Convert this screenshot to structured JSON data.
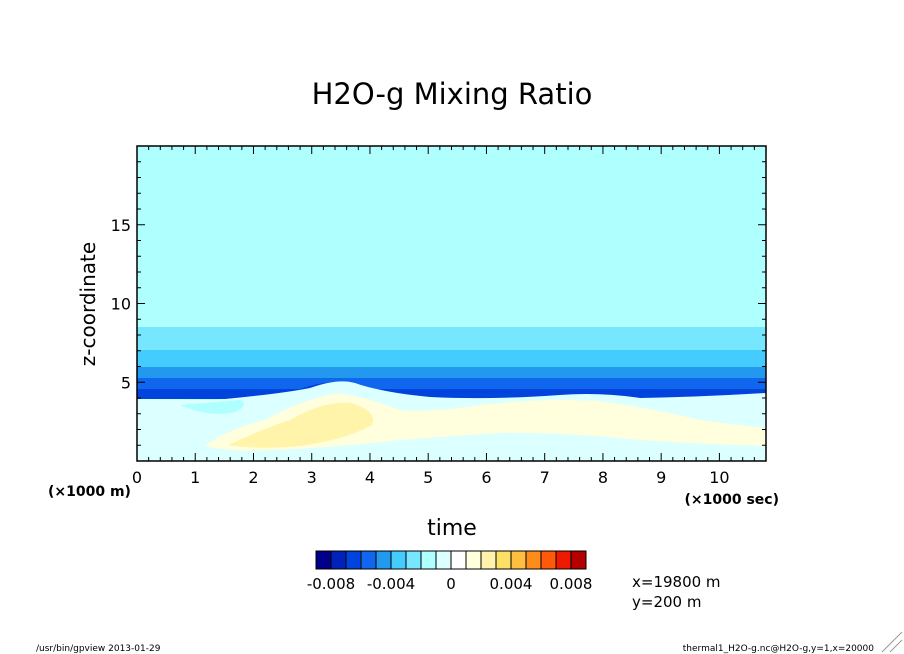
{
  "chart_data": {
    "type": "heatmap",
    "title": "H2O-g Mixing Ratio",
    "xlabel": "time",
    "ylabel": "z-coordinate",
    "x_unit_note": "(×1000 sec)",
    "y_unit_note": "(×1000 m)",
    "xlim": [
      0,
      10.8
    ],
    "ylim": [
      0,
      20
    ],
    "x_ticks": [
      "0",
      "1",
      "2",
      "3",
      "4",
      "5",
      "6",
      "7",
      "8",
      "9",
      "10"
    ],
    "y_ticks": [
      "5",
      "10",
      "15"
    ],
    "colorbar": {
      "colors": [
        "#00008b",
        "#0022bb",
        "#0044dd",
        "#1166ee",
        "#2299ee",
        "#44ccff",
        "#77e6ff",
        "#b0ffff",
        "#dcffff",
        "#ffffff",
        "#ffffdd",
        "#fff4aa",
        "#ffe066",
        "#ffc040",
        "#ff8c1a",
        "#ff5a0a",
        "#ee1a00",
        "#b30000"
      ],
      "tick_labels": [
        "-0.008",
        "-0.004",
        "0",
        "0.004",
        "0.008"
      ],
      "tick_values": [
        -0.008,
        -0.004,
        0,
        0.004,
        0.008
      ],
      "range": [
        -0.009,
        0.009
      ]
    },
    "bands": [
      {
        "value_range": [
          -0.001,
          0.0
        ],
        "z_range": [
          8.5,
          20
        ],
        "color": "#b0ffff"
      },
      {
        "value_range": [
          -0.002,
          -0.001
        ],
        "z_range": [
          7.1,
          8.5
        ],
        "color": "#77e6ff"
      },
      {
        "value_range": [
          -0.003,
          -0.002
        ],
        "z_range": [
          6.0,
          7.1
        ],
        "color": "#44ccff"
      },
      {
        "value_range": [
          -0.004,
          -0.003
        ],
        "z_range": [
          5.4,
          6.0
        ],
        "color": "#2299ee"
      },
      {
        "value_range": [
          -0.005,
          -0.004
        ],
        "z_range": [
          4.5,
          5.4
        ],
        "color": "#1166ee"
      },
      {
        "value_range": [
          -0.006,
          -0.005
        ],
        "z_range": [
          3.9,
          4.5
        ],
        "color": "#0044dd"
      }
    ],
    "info": [
      "x=19800 m",
      "y=200 m"
    ]
  },
  "footer": {
    "left": "/usr/bin/gpview  2013-01-29",
    "right": "thermal1_H2O-g.nc@H2O-g,y=1,x=20000"
  }
}
